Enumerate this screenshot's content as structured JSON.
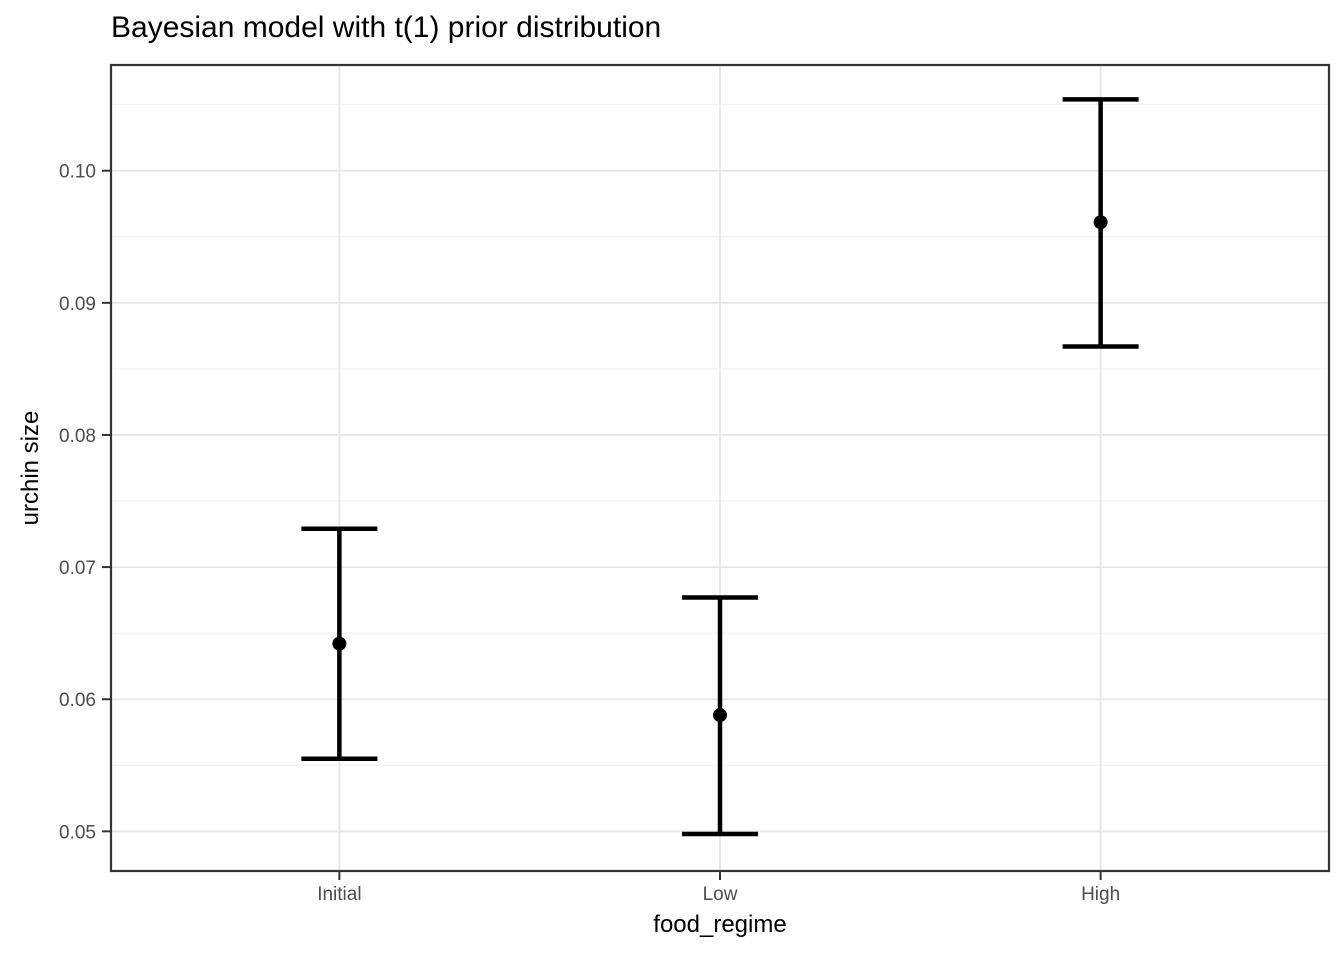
{
  "chart_data": {
    "type": "pointrange",
    "title": "Bayesian model with t(1) prior distribution",
    "xlabel": "food_regime",
    "ylabel": "urchin size",
    "categories": [
      "Initial",
      "Low",
      "High"
    ],
    "series": [
      {
        "name": "Initial",
        "mean": 0.0642,
        "lower": 0.0555,
        "upper": 0.0729
      },
      {
        "name": "Low",
        "mean": 0.0588,
        "lower": 0.0498,
        "upper": 0.0677
      },
      {
        "name": "High",
        "mean": 0.0961,
        "lower": 0.0867,
        "upper": 0.1054
      }
    ],
    "ylim": [
      0.047,
      0.108
    ],
    "y_major_ticks": [
      0.05,
      0.06,
      0.07,
      0.08,
      0.09,
      0.1
    ],
    "y_tick_labels": [
      "0.05",
      "0.06",
      "0.07",
      "0.08",
      "0.09",
      "0.10"
    ],
    "y_minor_ticks": [
      0.055,
      0.065,
      0.075,
      0.085,
      0.095,
      0.105
    ],
    "grid": "major-and-minor-horizontal, major-vertical-at-categories",
    "legend": "none",
    "style": {
      "background": "#ffffff",
      "panel_background": "#ffffff",
      "panel_border": "#333333",
      "grid_major": "#e6e6e6",
      "grid_minor": "#f0f0f0",
      "tick_color": "#333333",
      "tick_label_color": "#4d4d4d",
      "axis_title_color": "#000000",
      "title_color": "#000000",
      "data_color": "#000000"
    }
  }
}
